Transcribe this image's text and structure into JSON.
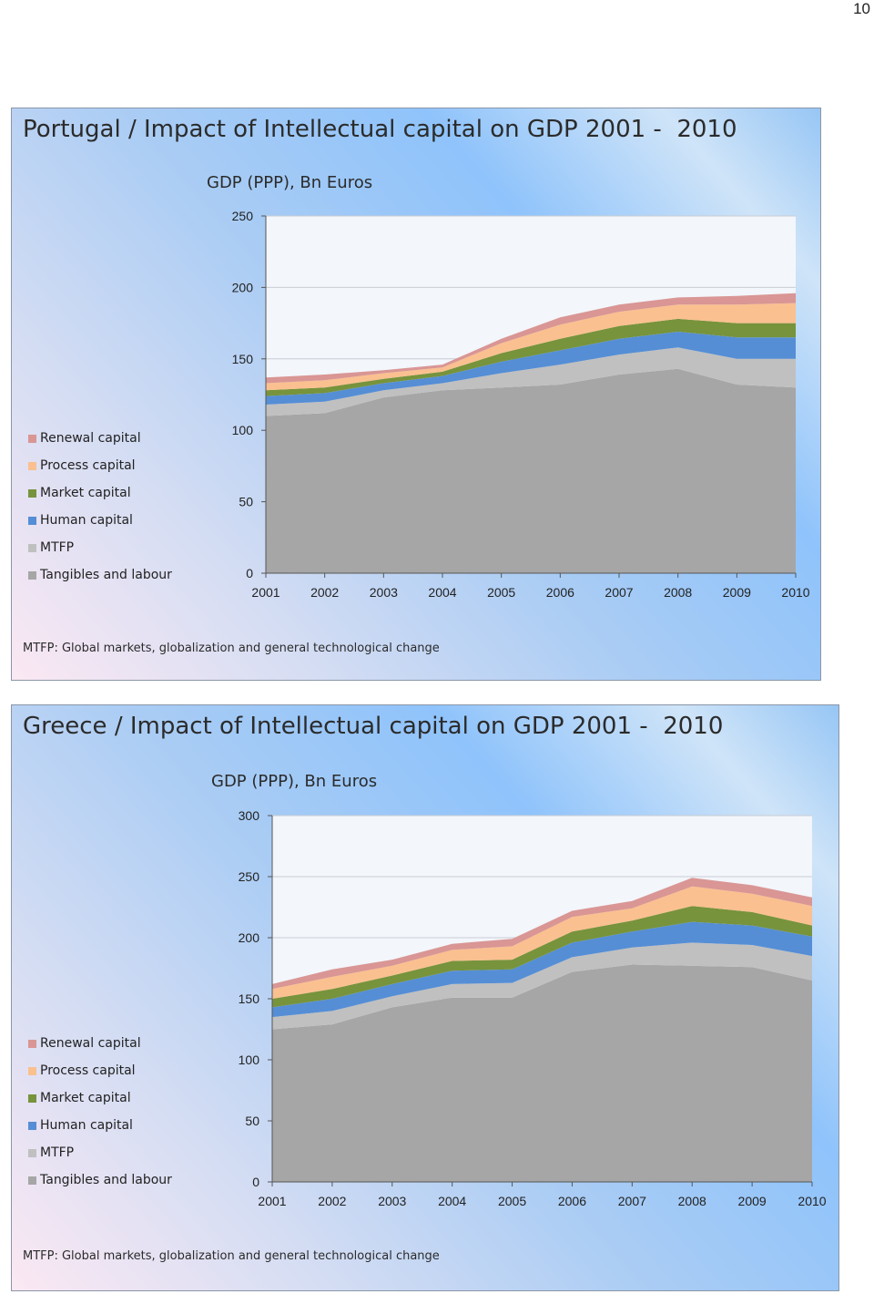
{
  "page_number": "10",
  "footnote": "MTFP: Global markets, globalization and general technological change",
  "colors": {
    "Renewal capital": "#d99694",
    "Process capital": "#fac090",
    "Market capital": "#77933c",
    "Human capital": "#558ed5",
    "MTFP": "#c0c0c0",
    "Tangibles and labour": "#a6a6a6",
    "plot_bg": "#f3f6fb",
    "grid": "#c8ccd4"
  },
  "panels": [
    {
      "title": "Portugal / Impact of Intellectual capital on GDP 2001 -  2010",
      "gdp_label": "GDP (PPP), Bn Euros",
      "legend": [
        "Renewal capital",
        "Process capital",
        "Market capital",
        "Human capital",
        "MTFP",
        "Tangibles and labour"
      ]
    },
    {
      "title": "Greece / Impact of Intellectual capital on GDP 2001 -  2010",
      "gdp_label": "GDP (PPP), Bn Euros",
      "legend": [
        "Renewal capital",
        "Process capital",
        "Market capital",
        "Human capital",
        "MTFP",
        "Tangibles and labour"
      ]
    }
  ],
  "chart_data": [
    {
      "type": "area",
      "stacked": true,
      "title": "Portugal / Impact of Intellectual capital on GDP 2001 -  2010",
      "ylabel": "GDP (PPP), Bn Euros",
      "categories": [
        "2001",
        "2002",
        "2003",
        "2004",
        "2005",
        "2006",
        "2007",
        "2008",
        "2009",
        "2010"
      ],
      "ylim": [
        0,
        250
      ],
      "yticks": [
        0,
        50,
        100,
        150,
        200,
        250
      ],
      "grid": true,
      "legend_position": "left",
      "series": [
        {
          "name": "Tangibles and labour",
          "values": [
            110,
            112,
            123,
            128,
            130,
            132,
            139,
            143,
            132,
            130
          ]
        },
        {
          "name": "MTFP",
          "values": [
            8,
            8,
            5,
            5,
            10,
            14,
            14,
            15,
            18,
            20
          ]
        },
        {
          "name": "Human capital",
          "values": [
            6,
            6,
            5,
            5,
            8,
            10,
            11,
            11,
            15,
            15
          ]
        },
        {
          "name": "Market capital",
          "values": [
            4,
            4,
            3,
            3,
            6,
            8,
            9,
            9,
            10,
            10
          ]
        },
        {
          "name": "Process capital",
          "values": [
            5,
            5,
            4,
            3,
            7,
            10,
            10,
            10,
            13,
            14
          ]
        },
        {
          "name": "Renewal capital",
          "values": [
            4,
            4,
            2,
            2,
            3,
            5,
            5,
            5,
            6,
            7
          ]
        }
      ]
    },
    {
      "type": "area",
      "stacked": true,
      "title": "Greece / Impact of Intellectual capital on GDP 2001 -  2010",
      "ylabel": "GDP (PPP), Bn Euros",
      "categories": [
        "2001",
        "2002",
        "2003",
        "2004",
        "2005",
        "2006",
        "2007",
        "2008",
        "2009",
        "2010"
      ],
      "ylim": [
        0,
        300
      ],
      "yticks": [
        0,
        50,
        100,
        150,
        200,
        250,
        300
      ],
      "grid": true,
      "legend_position": "left",
      "series": [
        {
          "name": "Tangibles and labour",
          "values": [
            125,
            129,
            143,
            151,
            151,
            172,
            178,
            177,
            176,
            165
          ]
        },
        {
          "name": "MTFP",
          "values": [
            10,
            11,
            9,
            11,
            12,
            12,
            14,
            19,
            18,
            20
          ]
        },
        {
          "name": "Human capital",
          "values": [
            8,
            10,
            10,
            11,
            11,
            12,
            13,
            17,
            16,
            16
          ]
        },
        {
          "name": "Market capital",
          "values": [
            7,
            8,
            7,
            8,
            8,
            9,
            9,
            13,
            11,
            9
          ]
        },
        {
          "name": "Process capital",
          "values": [
            8,
            10,
            8,
            9,
            11,
            12,
            10,
            16,
            15,
            16
          ]
        },
        {
          "name": "Renewal capital",
          "values": [
            4,
            6,
            5,
            5,
            6,
            5,
            6,
            7,
            7,
            7
          ]
        }
      ]
    }
  ]
}
